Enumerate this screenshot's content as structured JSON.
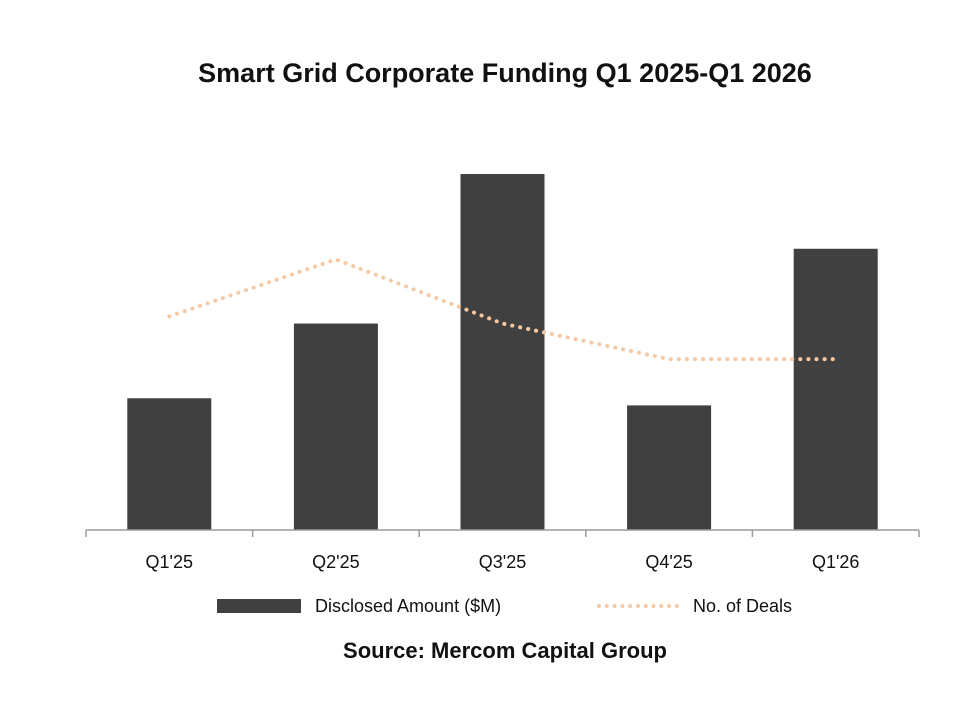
{
  "chart_data": {
    "type": "bar",
    "title": "Smart Grid Corporate Funding Q1 2025-Q1 2026",
    "categories": [
      "Q1'25",
      "Q2'25",
      "Q3'25",
      "Q4'25",
      "Q1'26"
    ],
    "series": [
      {
        "name": "Disclosed Amount ($M)",
        "type": "bar",
        "color": "#404040",
        "values": [
          37,
          58,
          100,
          35,
          79
        ]
      },
      {
        "name": "No. of Deals",
        "type": "line",
        "style": "dotted",
        "color": "#F4C9A3",
        "values": [
          15,
          19,
          14.5,
          12,
          12
        ]
      }
    ],
    "ylim": [
      0,
      100
    ],
    "y2lim": [
      0,
      25
    ],
    "grid": false,
    "legend": "bottom",
    "source": "Source: Mercom Capital Group"
  }
}
